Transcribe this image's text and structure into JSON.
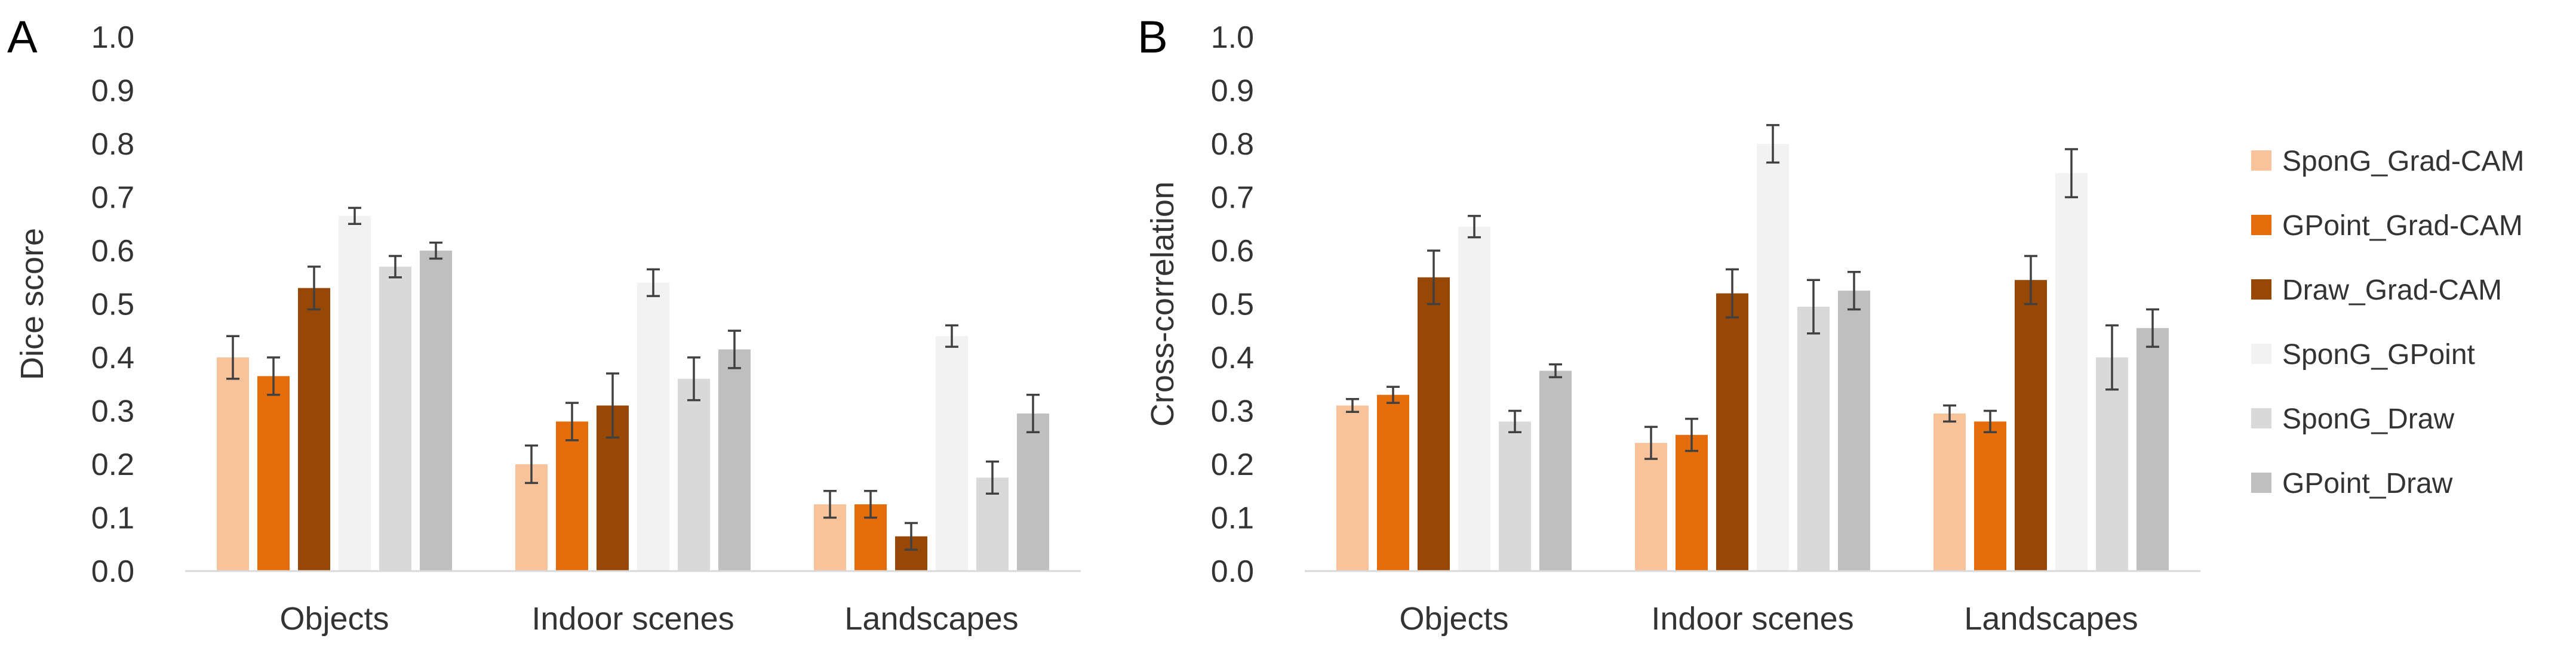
{
  "colors": {
    "SponG_Grad-CAM": "#f8c39a",
    "GPoint_Grad-CAM": "#e46c0a",
    "Draw_Grad-CAM": "#974706",
    "SponG_GPoint": "#f2f2f2",
    "SponG_Draw": "#d9d9d9",
    "GPoint_Draw": "#bfbfbf",
    "axis": "#d9d9d9",
    "errorbar": "#404040",
    "text": "#333333"
  },
  "legend": {
    "items": [
      "SponG_Grad-CAM",
      "GPoint_Grad-CAM",
      "Draw_Grad-CAM",
      "SponG_GPoint",
      "SponG_Draw",
      "GPoint_Draw"
    ]
  },
  "chart_data": [
    {
      "type": "bar",
      "panel_label": "A",
      "title": "",
      "xlabel": "",
      "ylabel": "Dice score",
      "ylim": [
        0,
        1.0
      ],
      "yticks": [
        "0.0",
        "0.1",
        "0.2",
        "0.3",
        "0.4",
        "0.5",
        "0.6",
        "0.7",
        "0.8",
        "0.9",
        "1.0"
      ],
      "categories": [
        "Objects",
        "Indoor scenes",
        "Landscapes"
      ],
      "series": [
        {
          "name": "SponG_Grad-CAM",
          "values": [
            0.4,
            0.2,
            0.125
          ],
          "errors": [
            0.04,
            0.035,
            0.025
          ]
        },
        {
          "name": "GPoint_Grad-CAM",
          "values": [
            0.365,
            0.28,
            0.125
          ],
          "errors": [
            0.035,
            0.035,
            0.025
          ]
        },
        {
          "name": "Draw_Grad-CAM",
          "values": [
            0.53,
            0.31,
            0.065
          ],
          "errors": [
            0.04,
            0.06,
            0.025
          ]
        },
        {
          "name": "SponG_GPoint",
          "values": [
            0.665,
            0.54,
            0.44
          ],
          "errors": [
            0.015,
            0.025,
            0.02
          ]
        },
        {
          "name": "SponG_Draw",
          "values": [
            0.57,
            0.36,
            0.175
          ],
          "errors": [
            0.02,
            0.04,
            0.03
          ]
        },
        {
          "name": "GPoint_Draw",
          "values": [
            0.6,
            0.415,
            0.295
          ],
          "errors": [
            0.015,
            0.035,
            0.035
          ]
        }
      ]
    },
    {
      "type": "bar",
      "panel_label": "B",
      "title": "",
      "xlabel": "",
      "ylabel": "Cross-correlation",
      "ylim": [
        0,
        1.0
      ],
      "yticks": [
        "0.0",
        "0.1",
        "0.2",
        "0.3",
        "0.4",
        "0.5",
        "0.6",
        "0.7",
        "0.8",
        "0.9",
        "1.0"
      ],
      "categories": [
        "Objects",
        "Indoor scenes",
        "Landscapes"
      ],
      "series": [
        {
          "name": "SponG_Grad-CAM",
          "values": [
            0.31,
            0.24,
            0.295
          ],
          "errors": [
            0.012,
            0.03,
            0.015
          ]
        },
        {
          "name": "GPoint_Grad-CAM",
          "values": [
            0.33,
            0.255,
            0.28
          ],
          "errors": [
            0.015,
            0.03,
            0.02
          ]
        },
        {
          "name": "Draw_Grad-CAM",
          "values": [
            0.55,
            0.52,
            0.545
          ],
          "errors": [
            0.05,
            0.045,
            0.045
          ]
        },
        {
          "name": "SponG_GPoint",
          "values": [
            0.645,
            0.8,
            0.745
          ],
          "errors": [
            0.02,
            0.035,
            0.045
          ]
        },
        {
          "name": "SponG_Draw",
          "values": [
            0.28,
            0.495,
            0.4
          ],
          "errors": [
            0.02,
            0.05,
            0.06
          ]
        },
        {
          "name": "GPoint_Draw",
          "values": [
            0.375,
            0.525,
            0.455
          ],
          "errors": [
            0.012,
            0.035,
            0.035
          ]
        }
      ]
    }
  ]
}
